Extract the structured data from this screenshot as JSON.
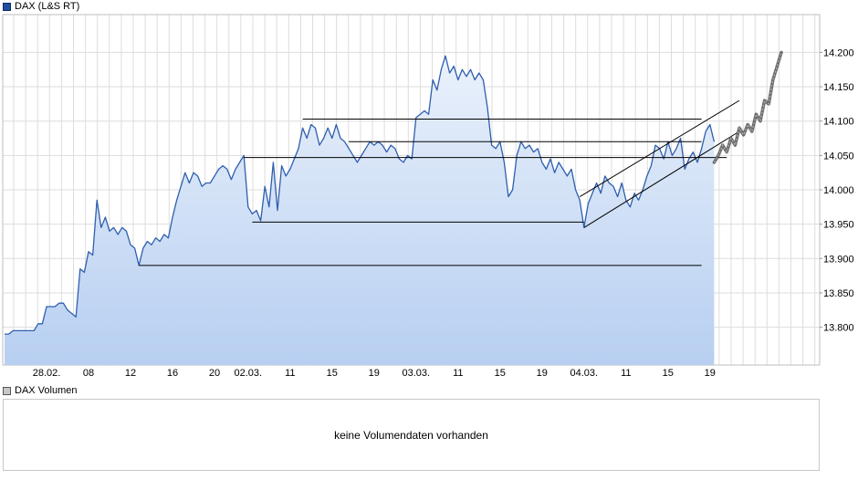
{
  "legend": {
    "price_label": "DAX (L&S RT)",
    "volume_label": "DAX Volumen"
  },
  "volume_panel": {
    "message": "keine Volumendaten vorhanden"
  },
  "colors": {
    "line": "#2e5fae",
    "fill_top": "#eaf1fb",
    "fill_bottom": "#b7cff1",
    "grid": "#dddddd",
    "trend": "#000000",
    "forecast": "#555555"
  },
  "chart_data": {
    "type": "area",
    "title": "DAX (L&S RT)",
    "x_axis": {
      "kind": "time",
      "ticks": [
        {
          "label": "28.02.",
          "t": 10
        },
        {
          "label": "08",
          "t": 20
        },
        {
          "label": "12",
          "t": 30
        },
        {
          "label": "16",
          "t": 40
        },
        {
          "label": "20",
          "t": 50
        },
        {
          "label": "02.03.",
          "t": 58
        },
        {
          "label": "11",
          "t": 68
        },
        {
          "label": "15",
          "t": 78
        },
        {
          "label": "19",
          "t": 88
        },
        {
          "label": "03.03.",
          "t": 98
        },
        {
          "label": "11",
          "t": 108
        },
        {
          "label": "15",
          "t": 118
        },
        {
          "label": "19",
          "t": 128
        },
        {
          "label": "04.03.",
          "t": 138
        },
        {
          "label": "11",
          "t": 148
        },
        {
          "label": "15",
          "t": 158
        },
        {
          "label": "19",
          "t": 168
        }
      ],
      "range": [
        0,
        180
      ]
    },
    "y_axis": {
      "ticks": [
        {
          "label": "13.800",
          "v": 13800
        },
        {
          "label": "13.850",
          "v": 13850
        },
        {
          "label": "13.900",
          "v": 13900
        },
        {
          "label": "13.950",
          "v": 13950
        },
        {
          "label": "14.000",
          "v": 14000
        },
        {
          "label": "14.050",
          "v": 14050
        },
        {
          "label": "14.100",
          "v": 14100
        },
        {
          "label": "14.150",
          "v": 14150
        },
        {
          "label": "14.200",
          "v": 14200
        }
      ],
      "range": [
        13745,
        14255
      ]
    },
    "grid": true,
    "series": [
      {
        "points": [
          [
            0,
            13790
          ],
          [
            1,
            13790
          ],
          [
            2,
            13795
          ],
          [
            3,
            13795
          ],
          [
            4,
            13795
          ],
          [
            5,
            13795
          ],
          [
            6,
            13795
          ],
          [
            7,
            13795
          ],
          [
            8,
            13805
          ],
          [
            9,
            13805
          ],
          [
            10,
            13830
          ],
          [
            11,
            13830
          ],
          [
            12,
            13830
          ],
          [
            13,
            13835
          ],
          [
            14,
            13835
          ],
          [
            15,
            13825
          ],
          [
            16,
            13820
          ],
          [
            17,
            13815
          ],
          [
            18,
            13885
          ],
          [
            19,
            13880
          ],
          [
            20,
            13910
          ],
          [
            21,
            13905
          ],
          [
            22,
            13985
          ],
          [
            23,
            13945
          ],
          [
            24,
            13960
          ],
          [
            25,
            13940
          ],
          [
            26,
            13945
          ],
          [
            27,
            13935
          ],
          [
            28,
            13945
          ],
          [
            29,
            13940
          ],
          [
            30,
            13920
          ],
          [
            31,
            13915
          ],
          [
            32,
            13890
          ],
          [
            33,
            13915
          ],
          [
            34,
            13925
          ],
          [
            35,
            13920
          ],
          [
            36,
            13930
          ],
          [
            37,
            13925
          ],
          [
            38,
            13935
          ],
          [
            39,
            13930
          ],
          [
            40,
            13960
          ],
          [
            41,
            13985
          ],
          [
            42,
            14005
          ],
          [
            43,
            14025
          ],
          [
            44,
            14010
          ],
          [
            45,
            14025
          ],
          [
            46,
            14020
          ],
          [
            47,
            14005
          ],
          [
            48,
            14010
          ],
          [
            49,
            14010
          ],
          [
            50,
            14020
          ],
          [
            51,
            14030
          ],
          [
            52,
            14035
          ],
          [
            53,
            14030
          ],
          [
            54,
            14015
          ],
          [
            55,
            14030
          ],
          [
            56,
            14040
          ],
          [
            57,
            14050
          ],
          [
            58,
            13975
          ],
          [
            59,
            13965
          ],
          [
            60,
            13970
          ],
          [
            61,
            13955
          ],
          [
            62,
            14005
          ],
          [
            63,
            13975
          ],
          [
            64,
            14040
          ],
          [
            65,
            13970
          ],
          [
            66,
            14035
          ],
          [
            67,
            14020
          ],
          [
            68,
            14030
          ],
          [
            69,
            14045
          ],
          [
            70,
            14060
          ],
          [
            71,
            14090
          ],
          [
            72,
            14075
          ],
          [
            73,
            14095
          ],
          [
            74,
            14090
          ],
          [
            75,
            14065
          ],
          [
            76,
            14075
          ],
          [
            77,
            14090
          ],
          [
            78,
            14075
          ],
          [
            79,
            14095
          ],
          [
            80,
            14075
          ],
          [
            81,
            14070
          ],
          [
            82,
            14060
          ],
          [
            83,
            14050
          ],
          [
            84,
            14040
          ],
          [
            85,
            14050
          ],
          [
            86,
            14060
          ],
          [
            87,
            14070
          ],
          [
            88,
            14065
          ],
          [
            89,
            14070
          ],
          [
            90,
            14065
          ],
          [
            91,
            14055
          ],
          [
            92,
            14065
          ],
          [
            93,
            14060
          ],
          [
            94,
            14045
          ],
          [
            95,
            14040
          ],
          [
            96,
            14050
          ],
          [
            97,
            14045
          ],
          [
            98,
            14105
          ],
          [
            99,
            14110
          ],
          [
            100,
            14115
          ],
          [
            101,
            14110
          ],
          [
            102,
            14160
          ],
          [
            103,
            14145
          ],
          [
            104,
            14175
          ],
          [
            105,
            14195
          ],
          [
            106,
            14170
          ],
          [
            107,
            14180
          ],
          [
            108,
            14160
          ],
          [
            109,
            14175
          ],
          [
            110,
            14165
          ],
          [
            111,
            14175
          ],
          [
            112,
            14160
          ],
          [
            113,
            14170
          ],
          [
            114,
            14160
          ],
          [
            115,
            14120
          ],
          [
            116,
            14065
          ],
          [
            117,
            14060
          ],
          [
            118,
            14070
          ],
          [
            119,
            14040
          ],
          [
            120,
            13990
          ],
          [
            121,
            14000
          ],
          [
            122,
            14050
          ],
          [
            123,
            14070
          ],
          [
            124,
            14060
          ],
          [
            125,
            14065
          ],
          [
            126,
            14055
          ],
          [
            127,
            14060
          ],
          [
            128,
            14040
          ],
          [
            129,
            14030
          ],
          [
            130,
            14045
          ],
          [
            131,
            14025
          ],
          [
            132,
            14040
          ],
          [
            133,
            14030
          ],
          [
            134,
            14020
          ],
          [
            135,
            14030
          ],
          [
            136,
            14000
          ],
          [
            137,
            13985
          ],
          [
            138,
            13945
          ],
          [
            139,
            13980
          ],
          [
            140,
            13995
          ],
          [
            141,
            14010
          ],
          [
            142,
            13995
          ],
          [
            143,
            14020
          ],
          [
            144,
            14010
          ],
          [
            145,
            14005
          ],
          [
            146,
            13990
          ],
          [
            147,
            14010
          ],
          [
            148,
            13985
          ],
          [
            149,
            13975
          ],
          [
            150,
            13995
          ],
          [
            151,
            13985
          ],
          [
            152,
            14000
          ],
          [
            153,
            14020
          ],
          [
            154,
            14035
          ],
          [
            155,
            14065
          ],
          [
            156,
            14060
          ],
          [
            157,
            14045
          ],
          [
            158,
            14070
          ],
          [
            159,
            14050
          ],
          [
            160,
            14060
          ],
          [
            161,
            14075
          ],
          [
            162,
            14030
          ],
          [
            163,
            14045
          ],
          [
            164,
            14055
          ],
          [
            165,
            14040
          ],
          [
            166,
            14060
          ],
          [
            167,
            14085
          ],
          [
            168,
            14095
          ],
          [
            169,
            14070
          ]
        ]
      }
    ],
    "forecast_points": [
      [
        169,
        14040
      ],
      [
        170,
        14050
      ],
      [
        171,
        14065
      ],
      [
        172,
        14055
      ],
      [
        173,
        14075
      ],
      [
        174,
        14065
      ],
      [
        175,
        14090
      ],
      [
        176,
        14080
      ],
      [
        177,
        14095
      ],
      [
        178,
        14085
      ],
      [
        179,
        14110
      ],
      [
        180,
        14100
      ],
      [
        181,
        14130
      ],
      [
        182,
        14125
      ],
      [
        183,
        14160
      ],
      [
        184,
        14180
      ],
      [
        185,
        14200
      ]
    ],
    "reference_lines": [
      {
        "t1": 57,
        "t2": 172,
        "v": 14047
      },
      {
        "t1": 32,
        "t2": 166,
        "v": 13890
      },
      {
        "t1": 59,
        "t2": 138,
        "v": 13953
      },
      {
        "t1": 71,
        "t2": 166,
        "v": 14103
      },
      {
        "t1": 82,
        "t2": 166,
        "v": 14070
      },
      {
        "t1": 138,
        "t2": 175,
        "v1": 13945,
        "v2": 14085
      },
      {
        "t1": 137,
        "t2": 175,
        "v1": 13990,
        "v2": 14130
      }
    ]
  }
}
